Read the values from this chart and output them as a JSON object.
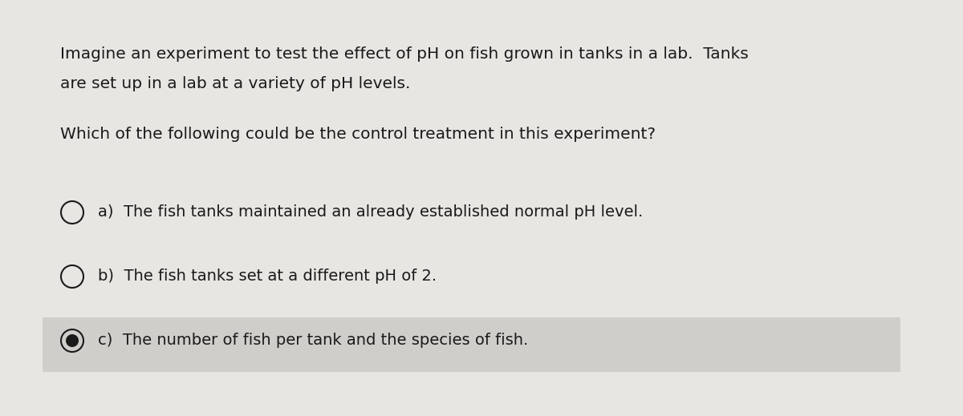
{
  "background_color": "#e8e6e2",
  "highlight_color": "#d0ceca",
  "text_color": "#1a1a1a",
  "title_lines": [
    "Imagine an experiment to test the effect of pH on fish grown in tanks in a lab.  Tanks",
    "are set up in a lab at a variety of pH levels."
  ],
  "question": "Which of the following could be the control treatment in this experiment?",
  "options": [
    {
      "label": "a)",
      "text": "The fish tanks maintained an already established normal pH level.",
      "selected": false,
      "highlighted": false
    },
    {
      "label": "b)",
      "text": "The fish tanks set at a different pH of 2.",
      "selected": false,
      "highlighted": false
    },
    {
      "label": "c)",
      "text": "The number of fish per tank and the species of fish.",
      "selected": true,
      "highlighted": true
    }
  ],
  "font_size_title": 14.5,
  "font_size_question": 14.5,
  "font_size_options": 14.0
}
